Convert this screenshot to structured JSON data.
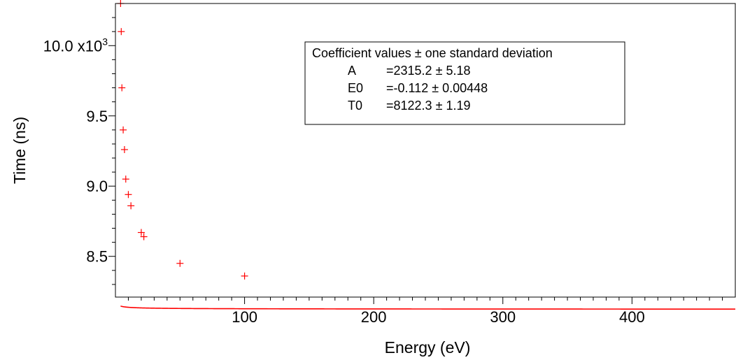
{
  "chart_data": {
    "type": "line",
    "title": "",
    "xlabel": "Energy (eV)",
    "ylabel": "Time (ns)",
    "xlim": [
      0,
      480
    ],
    "ylim": [
      8210,
      10300
    ],
    "x_ticks": [
      {
        "value": 100,
        "label": "100"
      },
      {
        "value": 200,
        "label": "200"
      },
      {
        "value": 300,
        "label": "300"
      },
      {
        "value": 400,
        "label": "400"
      }
    ],
    "y_ticks": [
      {
        "value": 8500,
        "label": "8.5"
      },
      {
        "value": 9000,
        "label": "9.0"
      },
      {
        "value": 9500,
        "label": "9.5"
      },
      {
        "value": 10000,
        "label": "10.0 x10",
        "exponent": "3"
      }
    ],
    "grid": false,
    "series": [
      {
        "kind": "scatter",
        "marker": "plus",
        "color": "#ff0000",
        "x": [
          4,
          4.5,
          5,
          6,
          7,
          8,
          10,
          12,
          20,
          22,
          50,
          100
        ],
        "y": [
          10300,
          10100,
          9700,
          9400,
          9260,
          9050,
          8940,
          8860,
          8670,
          8640,
          8450,
          8360
        ]
      },
      {
        "kind": "line",
        "color": "#ff0000",
        "model": "T0 + sqrt(A / (E - E0))"
      }
    ],
    "fit": {
      "A": 2315.2,
      "E0": -0.112,
      "T0": 8122.3
    },
    "legend": {
      "placement": "top-center",
      "title": "Coefficient values ± one standard deviation",
      "rows": [
        {
          "name": "A",
          "value": "=2315.2 ± 5.18"
        },
        {
          "name": "E0",
          "value": "=-0.112 ± 0.00448"
        },
        {
          "name": "T0",
          "value": "=8122.3 ± 1.19"
        }
      ]
    }
  }
}
